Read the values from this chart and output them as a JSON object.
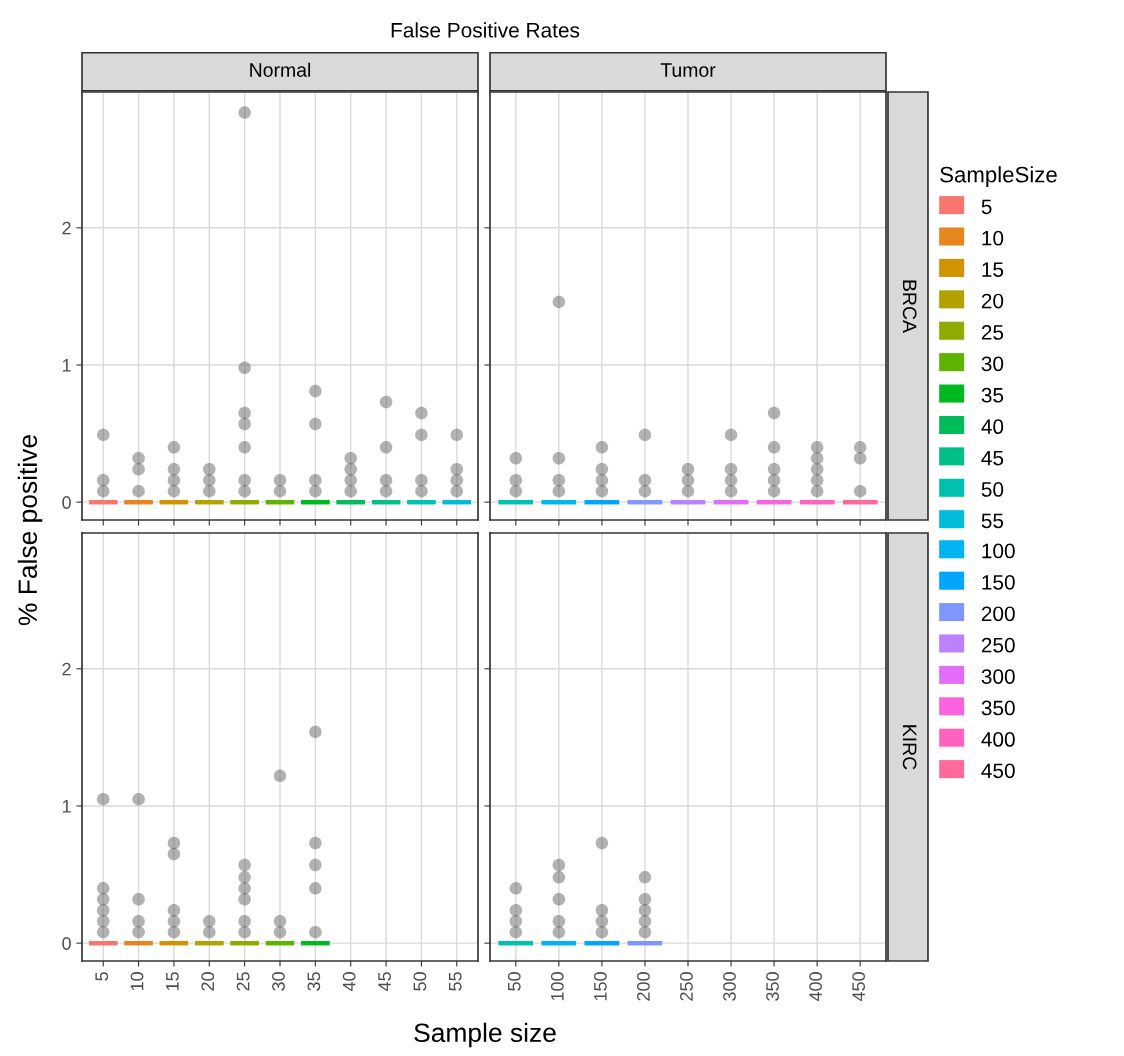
{
  "chart_data": [
    {
      "type": "box",
      "title": "False Positive Rates",
      "subtitle": "Normal",
      "ylabel": "% False positive",
      "legend_title": "SampleSize",
      "categories": [
        "5",
        "10",
        "15",
        "20",
        "25",
        "30",
        "35",
        "40",
        "45",
        "50",
        "55"
      ],
      "series": [
        {
          "name": "5",
          "color": "#f8766d",
          "boxes": [
            {
              "low": 0,
              "q1": 0,
              "median": 0,
              "q3": 0,
              "high": 0,
              "outliers": [
                0.08,
                0.16,
                0.49
              ]
            },
            null,
            null,
            null,
            null,
            null,
            null,
            null,
            null,
            null,
            null
          ]
        },
        {
          "name": "10",
          "color": "#e7851e",
          "boxes": [
            null,
            {
              "low": 0,
              "q1": 0,
              "median": 0,
              "q3": 0,
              "high": 0,
              "outliers": [
                0.08,
                0.24,
                0.32
              ]
            },
            null,
            null,
            null,
            null,
            null,
            null,
            null,
            null,
            null
          ]
        },
        {
          "name": "15",
          "color": "#d09400",
          "boxes": [
            null,
            null,
            {
              "low": 0,
              "q1": 0,
              "median": 0,
              "q3": 0,
              "high": 0,
              "outliers": [
                0.08,
                0.16,
                0.24,
                0.4
              ]
            },
            null,
            null,
            null,
            null,
            null,
            null,
            null,
            null
          ]
        },
        {
          "name": "20",
          "color": "#b2a100",
          "boxes": [
            null,
            null,
            null,
            {
              "low": 0,
              "q1": 0,
              "median": 0,
              "q3": 0,
              "high": 0,
              "outliers": [
                0.08,
                0.16,
                0.24
              ]
            },
            null,
            null,
            null,
            null,
            null,
            null,
            null
          ]
        },
        {
          "name": "25",
          "color": "#8eab00",
          "boxes": [
            null,
            null,
            null,
            null,
            {
              "low": 0,
              "q1": 0,
              "median": 0,
              "q3": 0,
              "high": 0,
              "outliers": [
                0.08,
                0.16,
                0.4,
                0.57,
                0.65,
                0.98,
                2.84
              ]
            },
            null,
            null,
            null,
            null,
            null,
            null
          ]
        },
        {
          "name": "30",
          "color": "#5eb300",
          "boxes": [
            null,
            null,
            null,
            null,
            null,
            {
              "low": 0,
              "q1": 0,
              "median": 0,
              "q3": 0,
              "high": 0,
              "outliers": [
                0.08,
                0.16
              ]
            },
            null,
            null,
            null,
            null,
            null
          ]
        },
        {
          "name": "35",
          "color": "#00b81f",
          "boxes": [
            null,
            null,
            null,
            null,
            null,
            null,
            {
              "low": 0,
              "q1": 0,
              "median": 0,
              "q3": 0,
              "high": 0,
              "outliers": [
                0.08,
                0.16,
                0.57,
                0.81
              ]
            },
            null,
            null,
            null,
            null
          ]
        },
        {
          "name": "40",
          "color": "#00bc59",
          "boxes": [
            null,
            null,
            null,
            null,
            null,
            null,
            null,
            {
              "low": 0,
              "q1": 0,
              "median": 0,
              "q3": 0,
              "high": 0,
              "outliers": [
                0.08,
                0.16,
                0.24,
                0.32
              ]
            },
            null,
            null,
            null
          ]
        },
        {
          "name": "45",
          "color": "#00bf87",
          "boxes": [
            null,
            null,
            null,
            null,
            null,
            null,
            null,
            null,
            {
              "low": 0,
              "q1": 0,
              "median": 0,
              "q3": 0,
              "high": 0,
              "outliers": [
                0.08,
                0.16,
                0.4,
                0.73
              ]
            },
            null,
            null
          ]
        },
        {
          "name": "50",
          "color": "#00c0af",
          "boxes": [
            null,
            null,
            null,
            null,
            null,
            null,
            null,
            null,
            null,
            {
              "low": 0,
              "q1": 0,
              "median": 0,
              "q3": 0,
              "high": 0,
              "outliers": [
                0.08,
                0.16,
                0.49,
                0.65
              ]
            },
            null
          ]
        },
        {
          "name": "55",
          "color": "#00bcd8",
          "boxes": [
            null,
            null,
            null,
            null,
            null,
            null,
            null,
            null,
            null,
            null,
            {
              "low": 0,
              "q1": 0,
              "median": 0,
              "q3": 0,
              "high": 0,
              "outliers": [
                0.08,
                0.16,
                0.24,
                0.49
              ]
            }
          ]
        }
      ],
      "ylim": [
        -0.13,
        2.99
      ],
      "yticks": [
        0,
        1,
        2
      ],
      "grid": true,
      "tick_labels": "y",
      "legend": "right"
    },
    {
      "type": "box",
      "subtitle": "Tumor",
      "y2label": "BRCA",
      "legend": "right",
      "categories": [
        "50",
        "100",
        "150",
        "200",
        "250",
        "300",
        "350",
        "400",
        "450"
      ],
      "series": [
        {
          "color": "#00c0af",
          "boxes": [
            {
              "low": 0,
              "q1": 0,
              "median": 0,
              "q3": 0,
              "high": 0,
              "outliers": [
                0.08,
                0.16,
                0.32
              ]
            },
            null,
            null,
            null,
            null,
            null,
            null,
            null,
            null
          ]
        },
        {
          "name": "100",
          "color": "#00b4ef",
          "boxes": [
            null,
            {
              "low": 0,
              "q1": 0,
              "median": 0,
              "q3": 0,
              "high": 0,
              "outliers": [
                0.08,
                0.16,
                0.32,
                1.46
              ]
            },
            null,
            null,
            null,
            null,
            null,
            null,
            null
          ]
        },
        {
          "name": "150",
          "color": "#00a5ff",
          "boxes": [
            null,
            null,
            {
              "low": 0,
              "q1": 0,
              "median": 0,
              "q3": 0,
              "high": 0,
              "outliers": [
                0.08,
                0.16,
                0.24,
                0.4
              ]
            },
            null,
            null,
            null,
            null,
            null,
            null
          ]
        },
        {
          "name": "200",
          "color": "#7f96ff",
          "boxes": [
            null,
            null,
            null,
            {
              "low": 0,
              "q1": 0,
              "median": 0,
              "q3": 0,
              "high": 0,
              "outliers": [
                0.08,
                0.16,
                0.49
              ]
            },
            null,
            null,
            null,
            null,
            null
          ]
        },
        {
          "name": "250",
          "color": "#bc81ff",
          "boxes": [
            null,
            null,
            null,
            null,
            {
              "low": 0,
              "q1": 0,
              "median": 0,
              "q3": 0,
              "high": 0,
              "outliers": [
                0.08,
                0.16,
                0.24
              ]
            },
            null,
            null,
            null,
            null
          ]
        },
        {
          "name": "300",
          "color": "#e26ef7",
          "boxes": [
            null,
            null,
            null,
            null,
            null,
            {
              "low": 0,
              "q1": 0,
              "median": 0,
              "q3": 0,
              "high": 0,
              "outliers": [
                0.08,
                0.16,
                0.24,
                0.49
              ]
            },
            null,
            null,
            null
          ]
        },
        {
          "name": "350",
          "color": "#f863df",
          "boxes": [
            null,
            null,
            null,
            null,
            null,
            null,
            {
              "low": 0,
              "q1": 0,
              "median": 0,
              "q3": 0,
              "high": 0,
              "outliers": [
                0.08,
                0.16,
                0.24,
                0.4,
                0.65
              ]
            },
            null,
            null
          ]
        },
        {
          "name": "400",
          "color": "#ff62bf",
          "boxes": [
            null,
            null,
            null,
            null,
            null,
            null,
            null,
            {
              "low": 0,
              "q1": 0,
              "median": 0,
              "q3": 0,
              "high": 0,
              "outliers": [
                0.08,
                0.16,
                0.24,
                0.32,
                0.4
              ]
            },
            null
          ]
        },
        {
          "name": "450",
          "color": "#ff6a9a",
          "boxes": [
            null,
            null,
            null,
            null,
            null,
            null,
            null,
            null,
            {
              "low": 0,
              "q1": 0,
              "median": 0,
              "q3": 0,
              "high": 0,
              "outliers": [
                0.08,
                0.32,
                0.4
              ]
            }
          ]
        }
      ],
      "ylim": [
        -0.13,
        2.99
      ],
      "yticks": [
        0,
        1,
        2
      ],
      "grid": true,
      "tick_labels": false
    },
    {
      "type": "box",
      "xlabel": "Sample size",
      "categories": [
        "5",
        "10",
        "15",
        "20",
        "25",
        "30",
        "35",
        "40",
        "45",
        "50",
        "55"
      ],
      "series": [
        {
          "color": "#f8766d",
          "boxes": [
            {
              "low": 0,
              "q1": 0,
              "median": 0,
              "q3": 0,
              "high": 0,
              "outliers": [
                0.08,
                0.16,
                0.24,
                0.32,
                0.4,
                1.05
              ]
            },
            null,
            null,
            null,
            null,
            null,
            null,
            null,
            null,
            null,
            null
          ]
        },
        {
          "color": "#e7851e",
          "boxes": [
            null,
            {
              "low": 0,
              "q1": 0,
              "median": 0,
              "q3": 0,
              "high": 0,
              "outliers": [
                0.08,
                0.16,
                0.32,
                1.05
              ]
            },
            null,
            null,
            null,
            null,
            null,
            null,
            null,
            null,
            null
          ]
        },
        {
          "color": "#d09400",
          "boxes": [
            null,
            null,
            {
              "low": 0,
              "q1": 0,
              "median": 0,
              "q3": 0,
              "high": 0,
              "outliers": [
                0.08,
                0.16,
                0.24,
                0.65,
                0.73
              ]
            },
            null,
            null,
            null,
            null,
            null,
            null,
            null,
            null
          ]
        },
        {
          "color": "#b2a100",
          "boxes": [
            null,
            null,
            null,
            {
              "low": 0,
              "q1": 0,
              "median": 0,
              "q3": 0,
              "high": 0,
              "outliers": [
                0.08,
                0.16
              ]
            },
            null,
            null,
            null,
            null,
            null,
            null,
            null
          ]
        },
        {
          "color": "#8eab00",
          "boxes": [
            null,
            null,
            null,
            null,
            {
              "low": 0,
              "q1": 0,
              "median": 0,
              "q3": 0,
              "high": 0,
              "outliers": [
                0.08,
                0.16,
                0.32,
                0.4,
                0.48,
                0.57
              ]
            },
            null,
            null,
            null,
            null,
            null,
            null
          ]
        },
        {
          "color": "#5eb300",
          "boxes": [
            null,
            null,
            null,
            null,
            null,
            {
              "low": 0,
              "q1": 0,
              "median": 0,
              "q3": 0,
              "high": 0,
              "outliers": [
                0.08,
                0.16,
                1.22
              ]
            },
            null,
            null,
            null,
            null,
            null
          ]
        },
        {
          "color": "#00b81f",
          "boxes": [
            null,
            null,
            null,
            null,
            null,
            null,
            {
              "low": 0,
              "q1": 0,
              "median": 0,
              "q3": 0,
              "high": 0,
              "outliers": [
                0.08,
                0.4,
                0.57,
                0.73,
                1.54
              ]
            },
            null,
            null,
            null,
            null
          ]
        }
      ],
      "ylim": [
        -0.13,
        2.99
      ],
      "yticks": [
        0,
        1,
        2
      ],
      "grid": true
    },
    {
      "type": "box",
      "y2label": "KIRC",
      "categories": [
        "50",
        "100",
        "150",
        "200",
        "250",
        "300",
        "350",
        "400",
        "450"
      ],
      "series": [
        {
          "color": "#00c0af",
          "boxes": [
            {
              "low": 0,
              "q1": 0,
              "median": 0,
              "q3": 0,
              "high": 0,
              "outliers": [
                0.08,
                0.16,
                0.24,
                0.4
              ]
            },
            null,
            null,
            null,
            null,
            null,
            null,
            null,
            null
          ]
        },
        {
          "color": "#00b4ef",
          "boxes": [
            null,
            {
              "low": 0,
              "q1": 0,
              "median": 0,
              "q3": 0,
              "high": 0,
              "outliers": [
                0.08,
                0.16,
                0.32,
                0.48,
                0.57
              ]
            },
            null,
            null,
            null,
            null,
            null,
            null,
            null
          ]
        },
        {
          "color": "#00a5ff",
          "boxes": [
            null,
            null,
            {
              "low": 0,
              "q1": 0,
              "median": 0,
              "q3": 0,
              "high": 0,
              "outliers": [
                0.08,
                0.16,
                0.24,
                0.73
              ]
            },
            null,
            null,
            null,
            null,
            null,
            null
          ]
        },
        {
          "color": "#7f96ff",
          "boxes": [
            null,
            null,
            null,
            {
              "low": 0,
              "q1": 0,
              "median": 0,
              "q3": 0,
              "high": 0,
              "outliers": [
                0.08,
                0.16,
                0.24,
                0.32,
                0.48
              ]
            },
            null,
            null,
            null,
            null,
            null
          ]
        }
      ],
      "ylim": [
        -0.13,
        2.99
      ],
      "yticks": [
        0,
        1,
        2
      ],
      "grid": true,
      "tick_labels": "x"
    }
  ]
}
